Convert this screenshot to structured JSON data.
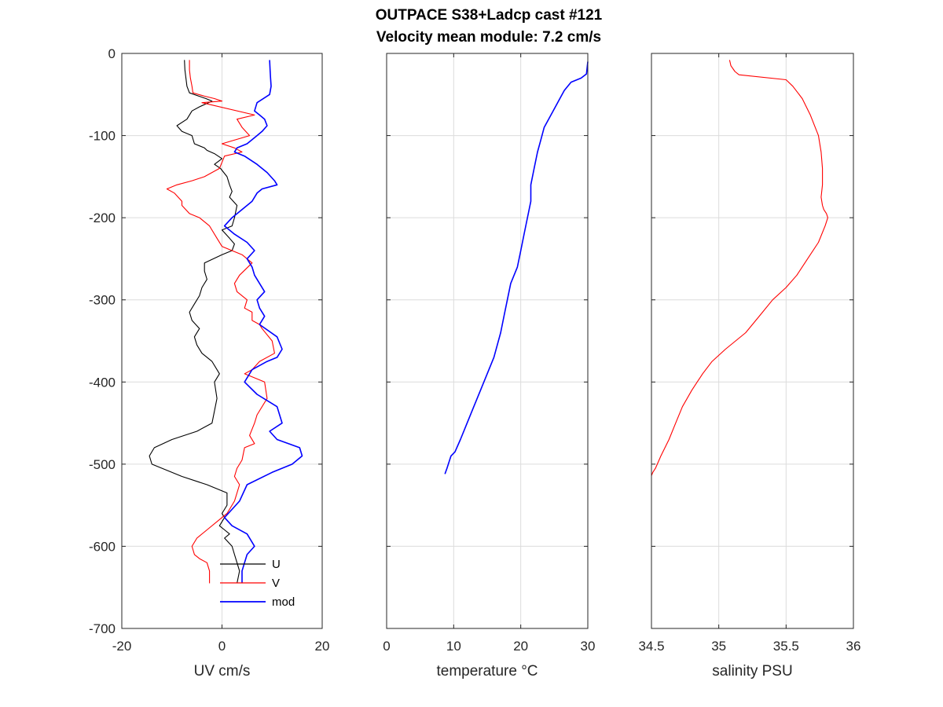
{
  "title_line1": "OUTPACE S38+Ladcp cast #121",
  "title_line2": "Velocity mean module:  7.2 cm/s",
  "chart_data": [
    {
      "type": "line",
      "xlabel": "UV cm/s",
      "ylabel": "",
      "xlim": [
        -20,
        20
      ],
      "ylim": [
        -700,
        0
      ],
      "xticks": [
        "-20",
        "0",
        "20"
      ],
      "yticks": [
        "0",
        "-100",
        "-200",
        "-300",
        "-400",
        "-500",
        "-600",
        "-700"
      ],
      "grid": true,
      "legend_position": "bottom-right",
      "series": [
        {
          "name": "U",
          "color": "#000000",
          "x": [
            -7.5,
            -7.4,
            -7.2,
            -7.0,
            -6.5,
            -3.2,
            -2.0,
            -4.5,
            -6.0,
            -7.0,
            -9.0,
            -8.0,
            -6.0,
            -5.5,
            -3.5,
            -3.0,
            -1.5,
            0.0,
            -1.5,
            -0.3,
            1.0,
            1.5,
            2.0,
            1.5,
            3.0,
            2.5,
            2.0,
            0.0,
            1.5,
            2.5,
            2.0,
            0.0,
            -3.5,
            -3.5,
            -3.0,
            -4.0,
            -4.5,
            -5.5,
            -6.5,
            -6.0,
            -4.5,
            -5.5,
            -5.0,
            -4.0,
            -2.0,
            -0.5,
            -1.5,
            -1.0,
            -2.0,
            -5.0,
            -10.0,
            -13.5,
            -14.5,
            -14.0,
            -8.0,
            -3.0,
            1.0,
            1.0,
            0.0,
            0.5,
            -0.5,
            0.5,
            1.5,
            0.5,
            2.0,
            2.5,
            3.0,
            3.5,
            3.0
          ],
          "y": [
            -8,
            -20,
            -30,
            -40,
            -48,
            -55,
            -58,
            -65,
            -70,
            -80,
            -88,
            -95,
            -100,
            -110,
            -115,
            -118,
            -122,
            -128,
            -135,
            -140,
            -150,
            -160,
            -168,
            -175,
            -185,
            -200,
            -210,
            -215,
            -225,
            -232,
            -240,
            -245,
            -255,
            -265,
            -275,
            -285,
            -295,
            -305,
            -315,
            -325,
            -335,
            -345,
            -355,
            -365,
            -375,
            -390,
            -400,
            -420,
            -450,
            -460,
            -470,
            -480,
            -490,
            -500,
            -515,
            -525,
            -535,
            -550,
            -560,
            -565,
            -575,
            -580,
            -585,
            -590,
            -600,
            -610,
            -620,
            -630,
            -645
          ]
        },
        {
          "name": "V",
          "color": "#ff0000",
          "x": [
            -6.5,
            -6.5,
            -6.3,
            -6.0,
            -5.8,
            -3.5,
            -1.5,
            0.0,
            -4.0,
            6.5,
            3.0,
            4.0,
            5.5,
            0.0,
            2.5,
            4.0,
            0.5,
            -0.5,
            -3.5,
            -6.0,
            -9.0,
            -11.0,
            -9.5,
            -8.0,
            -8.0,
            -6.5,
            -4.5,
            -2.5,
            -1.0,
            0.0,
            4.0,
            6.0,
            3.5,
            2.5,
            3.0,
            5.0,
            4.5,
            6.0,
            6.0,
            7.5,
            8.0,
            10.0,
            10.5,
            7.5,
            6.0,
            4.5,
            8.5,
            9.0,
            7.0,
            6.5,
            5.5,
            6.5,
            4.5,
            4.0,
            3.0,
            2.5,
            3.5,
            3.0,
            2.5,
            1.0,
            -1.0,
            -3.0,
            -5.0,
            -6.0,
            -5.5,
            -4.5,
            -3.0,
            -2.5,
            -2.5
          ],
          "y": [
            -8,
            -20,
            -30,
            -40,
            -48,
            -52,
            -55,
            -58,
            -60,
            -75,
            -80,
            -90,
            -100,
            -110,
            -115,
            -120,
            -125,
            -140,
            -150,
            -155,
            -160,
            -165,
            -170,
            -180,
            -185,
            -195,
            -200,
            -210,
            -225,
            -235,
            -245,
            -255,
            -270,
            -280,
            -290,
            -300,
            -310,
            -315,
            -325,
            -330,
            -335,
            -350,
            -365,
            -375,
            -385,
            -390,
            -400,
            -420,
            -440,
            -450,
            -465,
            -475,
            -480,
            -495,
            -505,
            -515,
            -525,
            -535,
            -545,
            -560,
            -570,
            -580,
            -590,
            -600,
            -610,
            -615,
            -620,
            -630,
            -645
          ]
        },
        {
          "name": "mod",
          "color": "#0000ff",
          "x": [
            9.5,
            9.6,
            9.7,
            9.8,
            9.5,
            7.0,
            6.5,
            7.5,
            8.5,
            9.0,
            8.0,
            7.0,
            5.0,
            3.0,
            2.5,
            4.5,
            7.0,
            9.0,
            10.5,
            11.0,
            8.0,
            7.0,
            6.0,
            4.0,
            2.0,
            0.5,
            2.5,
            5.0,
            6.5,
            5.0,
            6.0,
            6.5,
            7.5,
            8.5,
            7.0,
            7.5,
            8.5,
            7.5,
            11.0,
            12.0,
            11.0,
            9.0,
            6.0,
            4.5,
            7.0,
            11.0,
            11.5,
            12.0,
            9.5,
            11.0,
            15.5,
            16.0,
            14.0,
            10.0,
            5.0,
            3.5,
            2.0,
            0.5,
            2.0,
            5.0,
            6.5,
            5.0,
            4.5,
            4.0,
            4.0
          ],
          "y": [
            -8,
            -20,
            -30,
            -40,
            -50,
            -60,
            -70,
            -75,
            -80,
            -88,
            -95,
            -100,
            -110,
            -115,
            -120,
            -125,
            -135,
            -145,
            -155,
            -160,
            -165,
            -170,
            -180,
            -190,
            -200,
            -210,
            -220,
            -230,
            -240,
            -250,
            -260,
            -270,
            -280,
            -290,
            -300,
            -310,
            -320,
            -330,
            -345,
            -360,
            -370,
            -375,
            -385,
            -400,
            -415,
            -430,
            -440,
            -450,
            -460,
            -470,
            -480,
            -490,
            -500,
            -510,
            -525,
            -545,
            -555,
            -565,
            -575,
            -585,
            -600,
            -610,
            -620,
            -630,
            -645
          ]
        }
      ]
    },
    {
      "type": "line",
      "xlabel": "temperature °C",
      "ylabel": "",
      "xlim": [
        0,
        30
      ],
      "ylim": [
        -700,
        0
      ],
      "xticks": [
        "0",
        "10",
        "20",
        "30"
      ],
      "grid": true,
      "series": [
        {
          "color": "#0000ff",
          "x": [
            30.0,
            29.8,
            29.0,
            27.5,
            26.5,
            25.5,
            24.5,
            23.5,
            23.0,
            22.5,
            22.0,
            21.5,
            21.5,
            21.0,
            20.5,
            20.0,
            19.5,
            18.5,
            18.0,
            17.5,
            17.0,
            16.5,
            16.0,
            15.0,
            14.0,
            13.0,
            12.0,
            11.0,
            10.2,
            9.6,
            9.2,
            9.0,
            8.7
          ],
          "y": [
            -10,
            -25,
            -30,
            -35,
            -45,
            -60,
            -75,
            -90,
            -105,
            -120,
            -140,
            -160,
            -180,
            -200,
            -220,
            -240,
            -260,
            -280,
            -300,
            -320,
            -340,
            -355,
            -370,
            -390,
            -410,
            -430,
            -450,
            -470,
            -485,
            -490,
            -500,
            -505,
            -512
          ]
        }
      ]
    },
    {
      "type": "line",
      "xlabel": "salinity PSU",
      "ylabel": "",
      "xlim": [
        34.5,
        36
      ],
      "ylim": [
        -700,
        0
      ],
      "xticks": [
        "34.5",
        "35",
        "35.5",
        "36"
      ],
      "grid": true,
      "series": [
        {
          "color": "#ff0000",
          "x": [
            35.08,
            35.09,
            35.12,
            35.15,
            35.5,
            35.55,
            35.62,
            35.68,
            35.74,
            35.76,
            35.77,
            35.77,
            35.76,
            35.77,
            35.78,
            35.8,
            35.81,
            35.79,
            35.74,
            35.66,
            35.58,
            35.5,
            35.4,
            35.3,
            35.2,
            35.05,
            34.95,
            34.88,
            34.8,
            34.73,
            34.68,
            34.63,
            34.57,
            34.53,
            34.51,
            34.5
          ],
          "y": [
            -8,
            -15,
            -22,
            -26,
            -32,
            -40,
            -55,
            -75,
            -100,
            -120,
            -140,
            -160,
            -175,
            -185,
            -190,
            -195,
            -200,
            -210,
            -230,
            -250,
            -270,
            -285,
            -300,
            -320,
            -340,
            -360,
            -375,
            -390,
            -410,
            -430,
            -450,
            -470,
            -490,
            -505,
            -510,
            -514
          ]
        }
      ]
    }
  ],
  "legend": {
    "entries": [
      "U",
      "V",
      "mod"
    ]
  }
}
